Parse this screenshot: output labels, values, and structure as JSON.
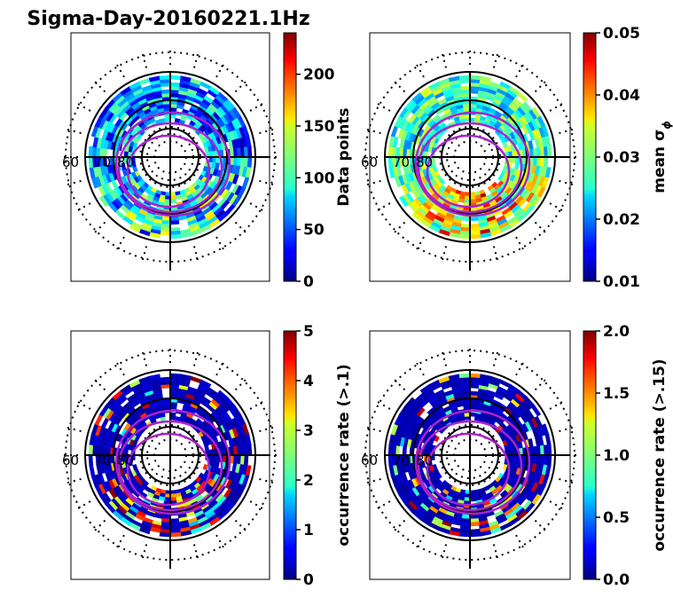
{
  "figure": {
    "title": "Sigma-Day-20160221.1Hz"
  },
  "chart_data": [
    {
      "type": "heatmap",
      "projection": "polar",
      "lat_labels": [
        "60",
        "70",
        "80"
      ],
      "colorbar": {
        "label": "Data points",
        "range": [
          0,
          240
        ],
        "ticks": [
          0,
          50,
          100,
          150,
          200
        ],
        "tick_labels": [
          "0",
          "50",
          "100",
          "150",
          "200"
        ]
      }
    },
    {
      "type": "heatmap",
      "projection": "polar",
      "lat_labels": [
        "60",
        "70",
        "80"
      ],
      "colorbar": {
        "label": "mean σ",
        "label_subscript": "ϕ",
        "range": [
          0.01,
          0.05
        ],
        "ticks": [
          0.01,
          0.02,
          0.03,
          0.04,
          0.05
        ],
        "tick_labels": [
          "0.01",
          "0.02",
          "0.03",
          "0.04",
          "0.05"
        ]
      }
    },
    {
      "type": "heatmap",
      "projection": "polar",
      "lat_labels": [
        "60",
        "70",
        "80"
      ],
      "colorbar": {
        "label": "occurrence rate (>.1)",
        "range": [
          0,
          5
        ],
        "ticks": [
          0,
          1,
          2,
          3,
          4,
          5
        ],
        "tick_labels": [
          "0",
          "1",
          "2",
          "3",
          "4",
          "5"
        ]
      }
    },
    {
      "type": "heatmap",
      "projection": "polar",
      "lat_labels": [
        "60",
        "70",
        "80"
      ],
      "colorbar": {
        "label": "occurrence rate (>.15)",
        "range": [
          0,
          2
        ],
        "ticks": [
          0,
          0.5,
          1,
          1.5,
          2
        ],
        "tick_labels": [
          "0.0",
          "0.5",
          "1.0",
          "1.5",
          "2.0"
        ]
      }
    }
  ],
  "colors": {
    "oval_line": "#aa22cc",
    "grid": "#000000"
  }
}
